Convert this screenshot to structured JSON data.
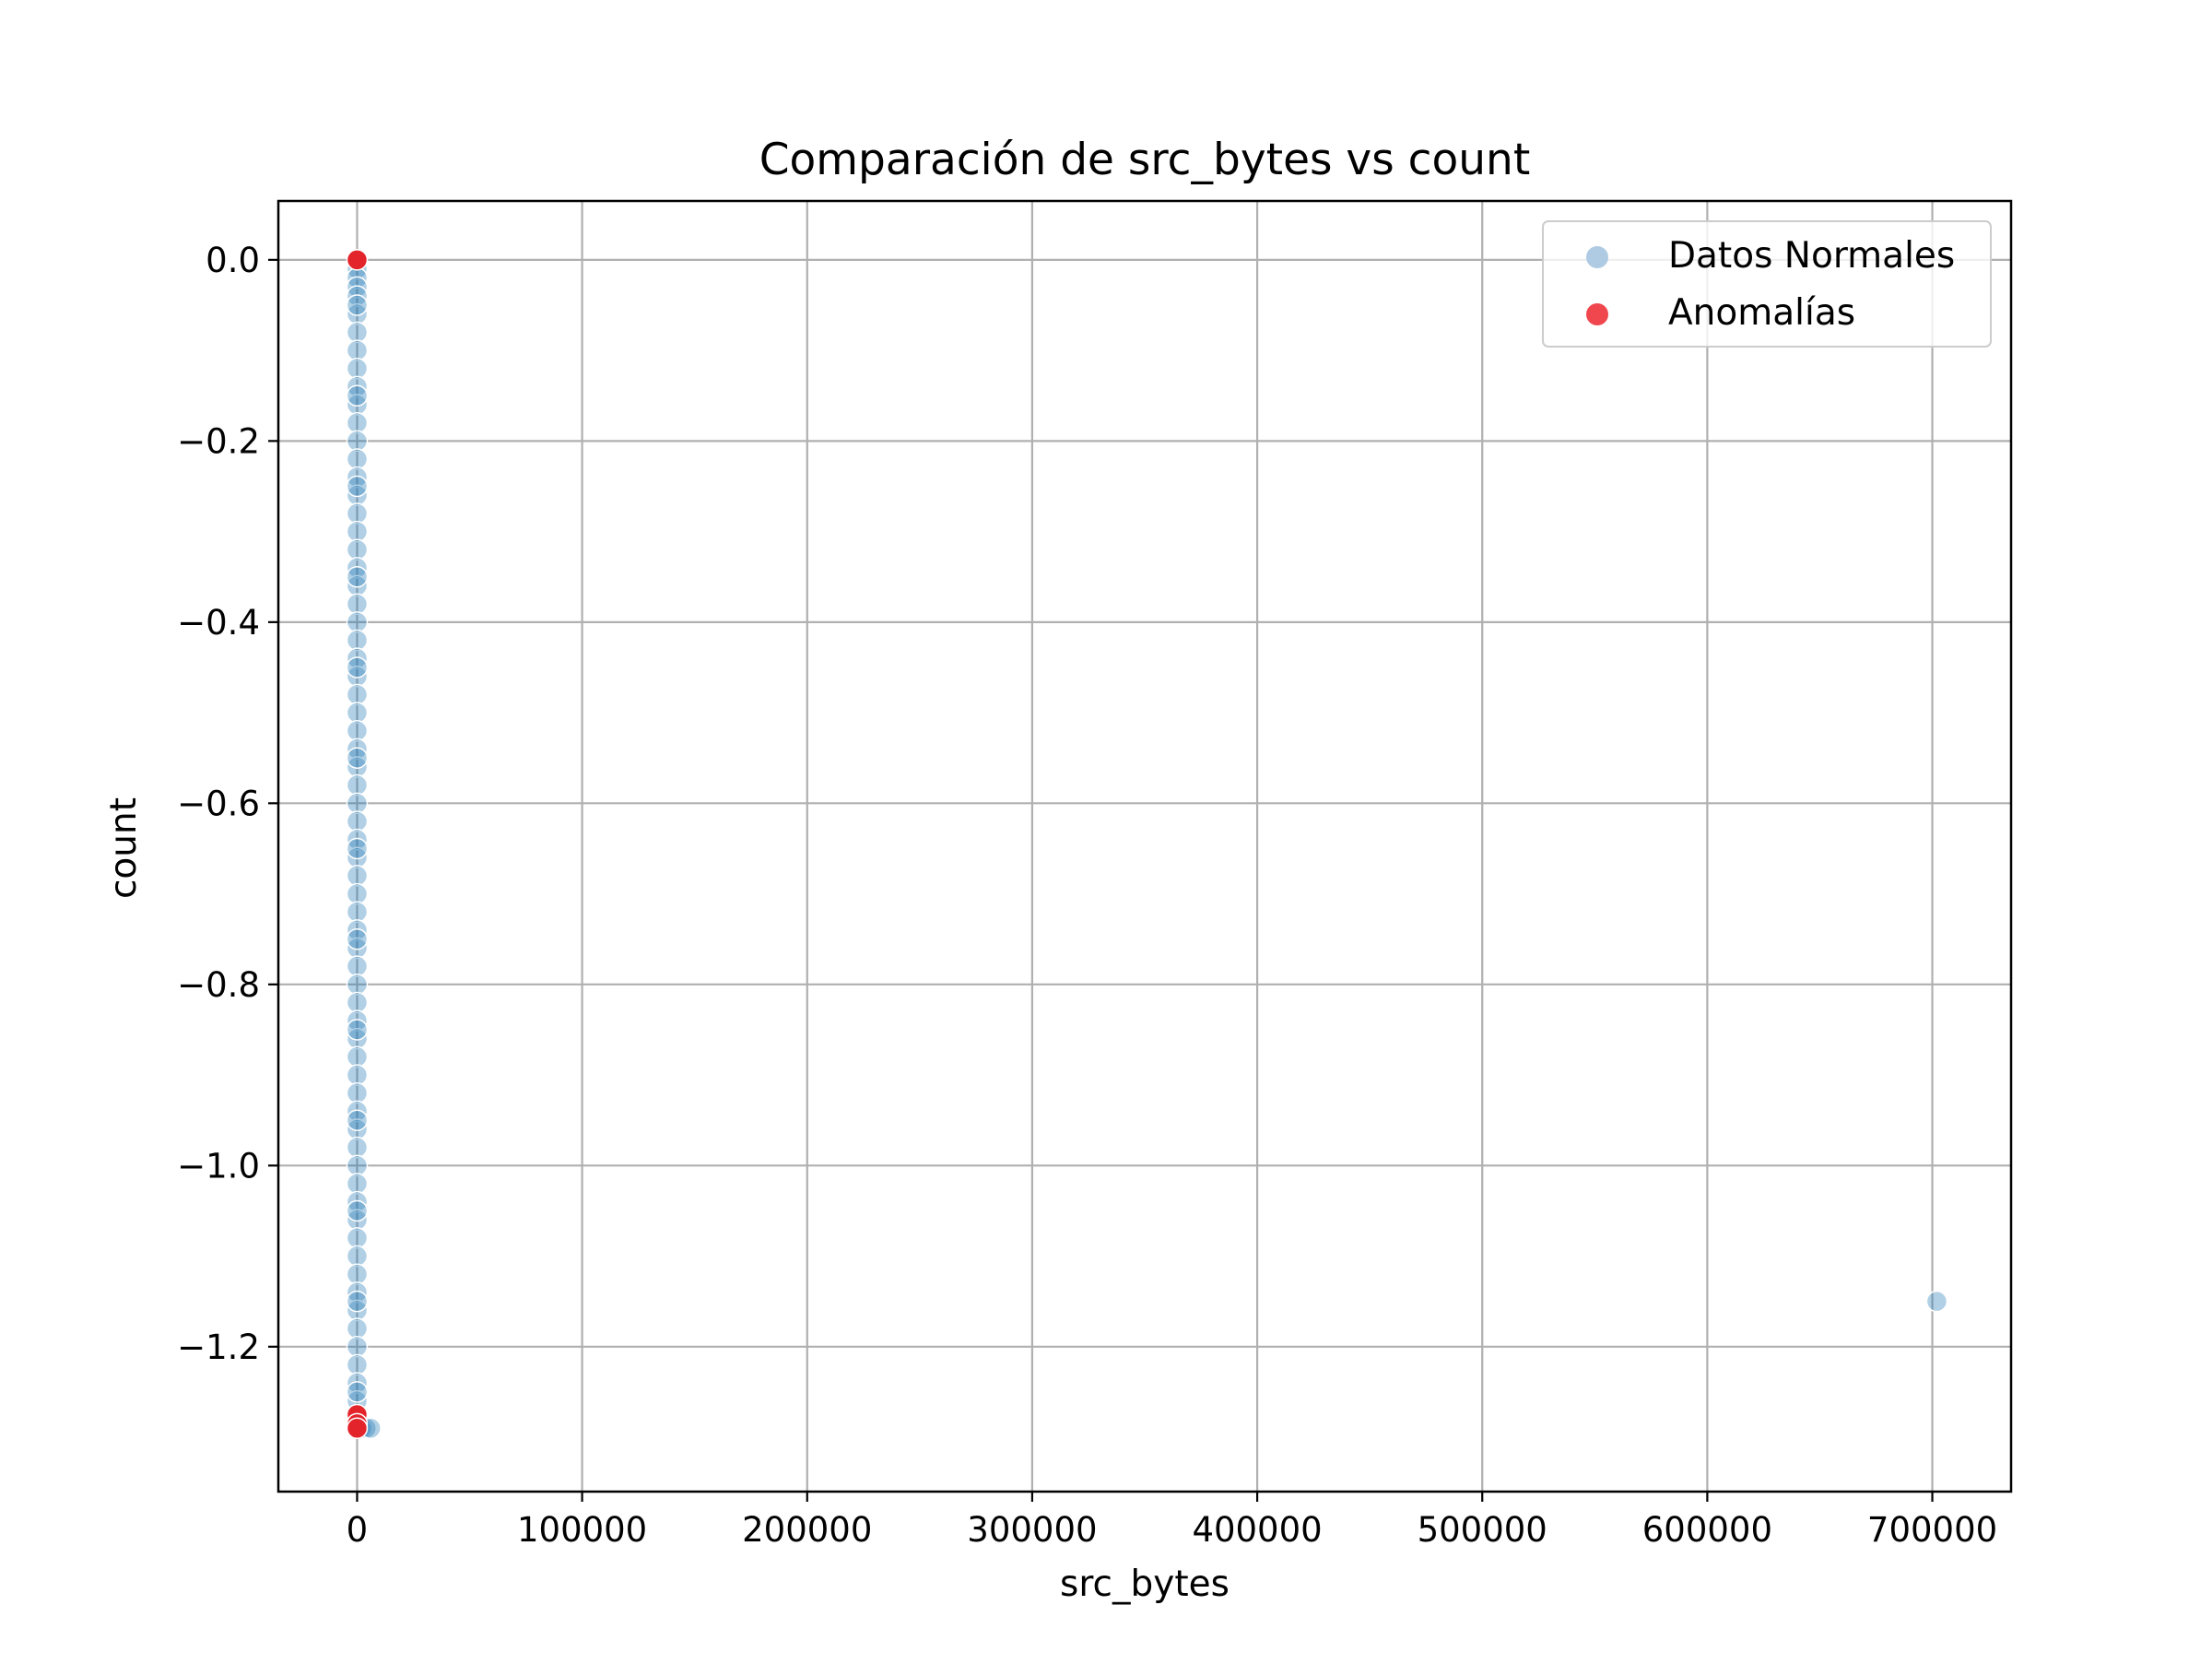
{
  "chart_data": {
    "type": "scatter",
    "title": "Comparación de src_bytes vs count",
    "xlabel": "src_bytes",
    "ylabel": "count",
    "xlim": [
      -35000,
      735000
    ],
    "ylim": [
      -1.36,
      0.065
    ],
    "xticks": [
      0,
      100000,
      200000,
      300000,
      400000,
      500000,
      600000,
      700000
    ],
    "xtick_labels": [
      "0",
      "100000",
      "200000",
      "300000",
      "400000",
      "500000",
      "600000",
      "700000"
    ],
    "yticks": [
      0.0,
      -0.2,
      -0.4,
      -0.6,
      -0.8,
      -1.0,
      -1.2
    ],
    "ytick_labels": [
      "0.0",
      "−0.2",
      "−0.4",
      "−0.6",
      "−0.8",
      "−1.0",
      "−1.2"
    ],
    "grid": true,
    "legend_position": "top-right",
    "series": [
      {
        "name": "Datos Normales",
        "color": "#1f77b4",
        "legend_color": "#aecbe3",
        "opacity": 0.35,
        "points": [
          [
            0,
            0.0
          ],
          [
            0,
            -0.01
          ],
          [
            0,
            -0.02
          ],
          [
            0,
            -0.03
          ],
          [
            0,
            -0.04
          ],
          [
            0,
            -0.06
          ],
          [
            0,
            -0.08
          ],
          [
            0,
            -0.1
          ],
          [
            0,
            -0.12
          ],
          [
            0,
            -0.14
          ],
          [
            0,
            -0.16
          ],
          [
            0,
            -0.18
          ],
          [
            0,
            -0.2
          ],
          [
            0,
            -0.22
          ],
          [
            0,
            -0.24
          ],
          [
            0,
            -0.26
          ],
          [
            0,
            -0.28
          ],
          [
            0,
            -0.3
          ],
          [
            0,
            -0.32
          ],
          [
            0,
            -0.34
          ],
          [
            0,
            -0.36
          ],
          [
            0,
            -0.38
          ],
          [
            0,
            -0.4
          ],
          [
            0,
            -0.42
          ],
          [
            0,
            -0.44
          ],
          [
            0,
            -0.46
          ],
          [
            0,
            -0.48
          ],
          [
            0,
            -0.5
          ],
          [
            0,
            -0.52
          ],
          [
            0,
            -0.54
          ],
          [
            0,
            -0.56
          ],
          [
            0,
            -0.58
          ],
          [
            0,
            -0.6
          ],
          [
            0,
            -0.62
          ],
          [
            0,
            -0.64
          ],
          [
            0,
            -0.66
          ],
          [
            0,
            -0.68
          ],
          [
            0,
            -0.7
          ],
          [
            0,
            -0.72
          ],
          [
            0,
            -0.74
          ],
          [
            0,
            -0.76
          ],
          [
            0,
            -0.78
          ],
          [
            0,
            -0.8
          ],
          [
            0,
            -0.82
          ],
          [
            0,
            -0.84
          ],
          [
            0,
            -0.86
          ],
          [
            0,
            -0.88
          ],
          [
            0,
            -0.9
          ],
          [
            0,
            -0.92
          ],
          [
            0,
            -0.94
          ],
          [
            0,
            -0.96
          ],
          [
            0,
            -0.98
          ],
          [
            0,
            -1.0
          ],
          [
            0,
            -1.02
          ],
          [
            0,
            -1.04
          ],
          [
            0,
            -1.06
          ],
          [
            0,
            -1.08
          ],
          [
            0,
            -1.1
          ],
          [
            0,
            -1.12
          ],
          [
            0,
            -1.14
          ],
          [
            0,
            -1.16
          ],
          [
            0,
            -1.18
          ],
          [
            0,
            -1.2
          ],
          [
            0,
            -1.22
          ],
          [
            0,
            -1.24
          ],
          [
            0,
            -1.26
          ],
          [
            0,
            -1.28
          ],
          [
            0,
            -1.29
          ],
          [
            0,
            -0.05
          ],
          [
            0,
            -0.15
          ],
          [
            0,
            -0.25
          ],
          [
            0,
            -0.35
          ],
          [
            0,
            -0.45
          ],
          [
            0,
            -0.55
          ],
          [
            0,
            -0.65
          ],
          [
            0,
            -0.75
          ],
          [
            0,
            -0.85
          ],
          [
            0,
            -0.95
          ],
          [
            0,
            -1.05
          ],
          [
            0,
            -1.15
          ],
          [
            0,
            -1.25
          ],
          [
            2000,
            -1.29
          ],
          [
            4000,
            -1.29
          ],
          [
            6000,
            -1.29
          ],
          [
            702000,
            -1.15
          ]
        ]
      },
      {
        "name": "Anomalías",
        "color": "#e3242b",
        "legend_color": "#f0474e",
        "opacity": 1,
        "points": [
          [
            0,
            0.0
          ],
          [
            0,
            -1.275
          ],
          [
            0,
            -1.285
          ],
          [
            0,
            -1.29
          ]
        ]
      }
    ]
  }
}
